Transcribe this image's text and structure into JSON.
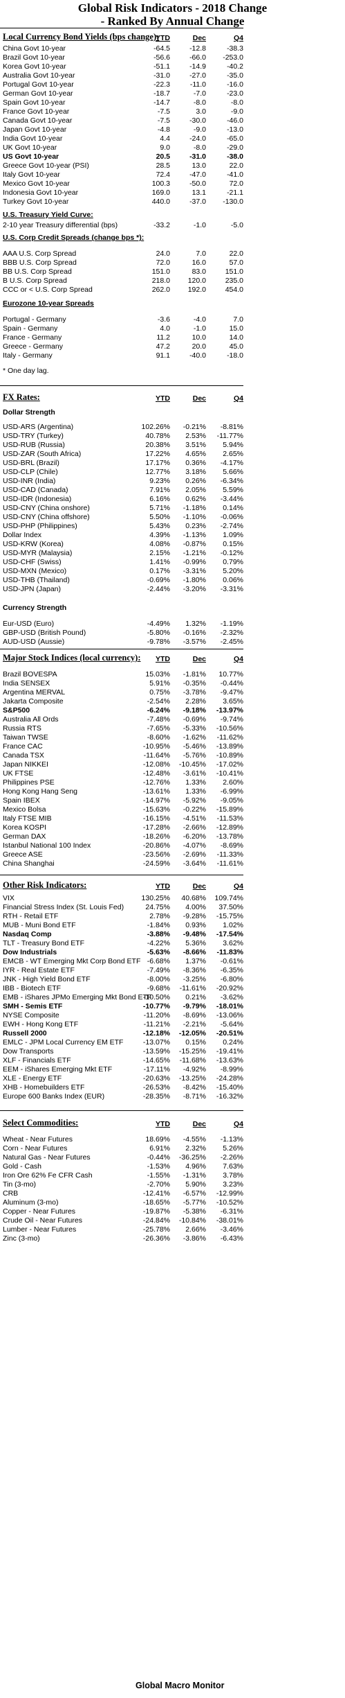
{
  "title_line1": "Global Risk Indicators - 2018 Change",
  "title_line2": "- Ranked By Annual Change",
  "columns": {
    "ytd": "YTD",
    "dec": "Dec",
    "q4": "Q4"
  },
  "bonds": {
    "title": "Local Currency Bond Yields (bps change):",
    "rows": [
      {
        "label": "China Govt 10-year",
        "ytd": "-64.5",
        "dec": "-12.8",
        "q4": "-38.3"
      },
      {
        "label": "Brazil Govt 10-year",
        "ytd": "-56.6",
        "dec": "-66.0",
        "q4": "-253.0"
      },
      {
        "label": "Korea Govt 10-year",
        "ytd": "-51.1",
        "dec": "-14.9",
        "q4": "-40.2"
      },
      {
        "label": "Australia Govt 10-year",
        "ytd": "-31.0",
        "dec": "-27.0",
        "q4": "-35.0"
      },
      {
        "label": "Portugal Govt 10-year",
        "ytd": "-22.3",
        "dec": "-11.0",
        "q4": "-16.0"
      },
      {
        "label": "German Govt 10-year",
        "ytd": "-18.7",
        "dec": "-7.0",
        "q4": "-23.0"
      },
      {
        "label": "Spain Govt 10-year",
        "ytd": "-14.7",
        "dec": "-8.0",
        "q4": "-8.0"
      },
      {
        "label": "France Govt 10-year",
        "ytd": "-7.5",
        "dec": "3.0",
        "q4": "-9.0"
      },
      {
        "label": "Canada Govt 10-year",
        "ytd": "-7.5",
        "dec": "-30.0",
        "q4": "-46.0"
      },
      {
        "label": "Japan Govt 10-year",
        "ytd": "-4.8",
        "dec": "-9.0",
        "q4": "-13.0"
      },
      {
        "label": "India Govt 10-year",
        "ytd": "4.4",
        "dec": "-24.0",
        "q4": "-65.0"
      },
      {
        "label": "UK Govt 10-year",
        "ytd": "9.0",
        "dec": "-8.0",
        "q4": "-29.0"
      },
      {
        "label": "US Govt 10-year",
        "ytd": "20.5",
        "dec": "-31.0",
        "q4": "-38.0",
        "bold": true
      },
      {
        "label": "Greece Govt 10-year (PSI)",
        "ytd": "28.5",
        "dec": "13.0",
        "q4": "22.0"
      },
      {
        "label": "Italy Govt 10-year",
        "ytd": "72.4",
        "dec": "-47.0",
        "q4": "-41.0"
      },
      {
        "label": "Mexico Govt 10-year",
        "ytd": "100.3",
        "dec": "-50.0",
        "q4": "72.0"
      },
      {
        "label": "Indonesia Govt 10-year",
        "ytd": "169.0",
        "dec": "13.1",
        "q4": "-21.1"
      },
      {
        "label": "Turkey Govt 10-year",
        "ytd": "440.0",
        "dec": "-37.0",
        "q4": "-130.0"
      }
    ]
  },
  "curve": {
    "title": "U.S. Treasury Yield Curve:",
    "rows": [
      {
        "label": "2-10 year Treasury differential (bps)",
        "ytd": "-33.2",
        "dec": "-1.0",
        "q4": "-5.0"
      }
    ]
  },
  "credit": {
    "title": "U.S. Corp Credit Spreads (change bps *):",
    "rows": [
      {
        "label": "AAA U.S. Corp Spread",
        "ytd": "24.0",
        "dec": "7.0",
        "q4": "22.0"
      },
      {
        "label": "BBB U.S. Corp Spread",
        "ytd": "72.0",
        "dec": "16.0",
        "q4": "57.0"
      },
      {
        "label": "BB U.S. Corp Spread",
        "ytd": "151.0",
        "dec": "83.0",
        "q4": "151.0"
      },
      {
        "label": "B U.S. Corp Spread",
        "ytd": "218.0",
        "dec": "120.0",
        "q4": "235.0"
      },
      {
        "label": "CCC or < U.S. Corp Spread",
        "ytd": "262.0",
        "dec": "192.0",
        "q4": "454.0"
      }
    ]
  },
  "eurozone": {
    "title": "Eurozone 10-year Spreads",
    "rows": [
      {
        "label": "Portugal - Germany",
        "ytd": "-3.6",
        "dec": "-4.0",
        "q4": "7.0"
      },
      {
        "label": "Spain - Germany",
        "ytd": "4.0",
        "dec": "-1.0",
        "q4": "15.0"
      },
      {
        "label": "France - Germany",
        "ytd": "11.2",
        "dec": "10.0",
        "q4": "14.0"
      },
      {
        "label": "Greece - Germany",
        "ytd": "47.2",
        "dec": "20.0",
        "q4": "45.0"
      },
      {
        "label": "Italy - Germany",
        "ytd": "91.1",
        "dec": "-40.0",
        "q4": "-18.0"
      }
    ],
    "note": "* One day lag."
  },
  "fx": {
    "title": "FX Rates:",
    "dollar_title": "Dollar Strength",
    "dollar_rows": [
      {
        "label": "USD-ARS (Argentina)",
        "ytd": "102.26%",
        "dec": "-0.21%",
        "q4": "-8.81%"
      },
      {
        "label": "USD-TRY (Turkey)",
        "ytd": "40.78%",
        "dec": "2.53%",
        "q4": "-11.77%"
      },
      {
        "label": "USD-RUB (Russia)",
        "ytd": "20.38%",
        "dec": "3.51%",
        "q4": "5.94%"
      },
      {
        "label": "USD-ZAR (South Africa)",
        "ytd": "17.22%",
        "dec": "4.65%",
        "q4": "2.65%"
      },
      {
        "label": "USD-BRL (Brazil)",
        "ytd": "17.17%",
        "dec": "0.36%",
        "q4": "-4.17%"
      },
      {
        "label": "USD-CLP (Chile)",
        "ytd": "12.77%",
        "dec": "3.18%",
        "q4": "5.66%"
      },
      {
        "label": "USD-INR (India)",
        "ytd": "9.23%",
        "dec": "0.26%",
        "q4": "-6.34%"
      },
      {
        "label": "USD-CAD (Canada)",
        "ytd": "7.91%",
        "dec": "2.05%",
        "q4": "5.59%"
      },
      {
        "label": "USD-IDR (Indonesia)",
        "ytd": "6.16%",
        "dec": "0.62%",
        "q4": "-3.44%"
      },
      {
        "label": "USD-CNY (China onshore)",
        "ytd": "5.71%",
        "dec": "-1.18%",
        "q4": "0.14%"
      },
      {
        "label": "USD-CNY (China offshore)",
        "ytd": "5.50%",
        "dec": "-1.10%",
        "q4": "-0.06%"
      },
      {
        "label": "USD-PHP (Philippines)",
        "ytd": "5.43%",
        "dec": "0.23%",
        "q4": "-2.74%"
      },
      {
        "label": "Dollar Index",
        "ytd": "4.39%",
        "dec": "-1.13%",
        "q4": "1.09%"
      },
      {
        "label": "USD-KRW (Korea)",
        "ytd": "4.08%",
        "dec": "-0.87%",
        "q4": "0.15%"
      },
      {
        "label": "USD-MYR (Malaysia)",
        "ytd": "2.15%",
        "dec": "-1.21%",
        "q4": "-0.12%"
      },
      {
        "label": "USD-CHF (Swiss)",
        "ytd": "1.41%",
        "dec": "-0.99%",
        "q4": "0.79%"
      },
      {
        "label": "USD-MXN (Mexico)",
        "ytd": "0.17%",
        "dec": "-3.31%",
        "q4": "5.20%"
      },
      {
        "label": "USD-THB (Thailand)",
        "ytd": "-0.69%",
        "dec": "-1.80%",
        "q4": "0.06%"
      },
      {
        "label": "USD-JPN (Japan)",
        "ytd": "-2.44%",
        "dec": "-3.20%",
        "q4": "-3.31%"
      }
    ],
    "currency_title": "Currency Strength",
    "currency_rows": [
      {
        "label": "Eur-USD (Euro)",
        "ytd": "-4.49%",
        "dec": "1.32%",
        "q4": "-1.19%"
      },
      {
        "label": "GBP-USD (British Pound)",
        "ytd": "-5.80%",
        "dec": "-0.16%",
        "q4": "-2.32%"
      },
      {
        "label": "AUD-USD (Aussie)",
        "ytd": "-9.78%",
        "dec": "-3.57%",
        "q4": "-2.45%"
      }
    ]
  },
  "stocks": {
    "title": "Major Stock Indices (local currency):",
    "rows": [
      {
        "label": "Brazil BOVESPA",
        "ytd": "15.03%",
        "dec": "-1.81%",
        "q4": "10.77%"
      },
      {
        "label": "India SENSEX",
        "ytd": "5.91%",
        "dec": "-0.35%",
        "q4": "-0.44%"
      },
      {
        "label": "Argentina MERVAL",
        "ytd": "0.75%",
        "dec": "-3.78%",
        "q4": "-9.47%"
      },
      {
        "label": "Jakarta Composite",
        "ytd": "-2.54%",
        "dec": "2.28%",
        "q4": "3.65%"
      },
      {
        "label": "S&P500",
        "ytd": "-6.24%",
        "dec": "-9.18%",
        "q4": "-13.97%",
        "bold": true
      },
      {
        "label": "Australia All Ords",
        "ytd": "-7.48%",
        "dec": "-0.69%",
        "q4": "-9.74%"
      },
      {
        "label": "Russia RTS",
        "ytd": "-7.65%",
        "dec": "-5.33%",
        "q4": "-10.56%"
      },
      {
        "label": "Taiwan  TWSE",
        "ytd": "-8.60%",
        "dec": "-1.62%",
        "q4": "-11.62%"
      },
      {
        "label": "France CAC",
        "ytd": "-10.95%",
        "dec": "-5.46%",
        "q4": "-13.89%"
      },
      {
        "label": "Canada TSX",
        "ytd": "-11.64%",
        "dec": "-5.76%",
        "q4": "-10.89%"
      },
      {
        "label": "Japan NIKKEI",
        "ytd": "-12.08%",
        "dec": "-10.45%",
        "q4": "-17.02%"
      },
      {
        "label": "UK FTSE",
        "ytd": "-12.48%",
        "dec": "-3.61%",
        "q4": "-10.41%"
      },
      {
        "label": "Philippines PSE",
        "ytd": "-12.76%",
        "dec": "1.33%",
        "q4": "2.60%"
      },
      {
        "label": "Hong Kong Hang Seng",
        "ytd": "-13.61%",
        "dec": "1.33%",
        "q4": "-6.99%"
      },
      {
        "label": "Spain IBEX",
        "ytd": "-14.97%",
        "dec": "-5.92%",
        "q4": "-9.05%"
      },
      {
        "label": "Mexico Bolsa",
        "ytd": "-15.63%",
        "dec": "-0.22%",
        "q4": "-15.89%"
      },
      {
        "label": "Italy FTSE MIB",
        "ytd": "-16.15%",
        "dec": "-4.51%",
        "q4": "-11.53%"
      },
      {
        "label": "Korea KOSPI",
        "ytd": "-17.28%",
        "dec": "-2.66%",
        "q4": "-12.89%"
      },
      {
        "label": "German DAX",
        "ytd": "-18.26%",
        "dec": "-6.20%",
        "q4": "-13.78%"
      },
      {
        "label": "Istanbul National 100 Index",
        "ytd": "-20.86%",
        "dec": "-4.07%",
        "q4": "-8.69%"
      },
      {
        "label": "Greece ASE",
        "ytd": "-23.56%",
        "dec": "-2.69%",
        "q4": "-11.33%"
      },
      {
        "label": "China Shanghai",
        "ytd": "-24.59%",
        "dec": "-3.64%",
        "q4": "-11.61%"
      }
    ]
  },
  "risk": {
    "title": "Other Risk Indicators:",
    "rows": [
      {
        "label": "VIX",
        "ytd": "130.25%",
        "dec": "40.68%",
        "q4": "109.74%"
      },
      {
        "label": "Financial Stress Index (St. Louis Fed)",
        "ytd": "24.75%",
        "dec": "4.00%",
        "q4": "37.50%"
      },
      {
        "label": "RTH - Retail ETF",
        "ytd": "2.78%",
        "dec": "-9.28%",
        "q4": "-15.75%"
      },
      {
        "label": "MUB - Muni Bond ETF",
        "ytd": "-1.84%",
        "dec": "0.93%",
        "q4": "1.02%"
      },
      {
        "label": "Nasdaq Comp",
        "ytd": "-3.88%",
        "dec": "-9.48%",
        "q4": "-17.54%",
        "bold": true
      },
      {
        "label": "TLT - Treasury Bond ETF",
        "ytd": "-4.22%",
        "dec": "5.36%",
        "q4": "3.62%"
      },
      {
        "label": "Dow Industrials",
        "ytd": "-5.63%",
        "dec": "-8.66%",
        "q4": "-11.83%",
        "bold": true
      },
      {
        "label": "EMCB - WT Emerging Mkt Corp Bond ETF",
        "ytd": "-6.68%",
        "dec": "1.37%",
        "q4": "-0.61%"
      },
      {
        "label": "IYR - Real Estate ETF",
        "ytd": "-7.49%",
        "dec": "-8.36%",
        "q4": "-6.35%"
      },
      {
        "label": "JNK - High Yield Bond ETF",
        "ytd": "-8.00%",
        "dec": "-3.25%",
        "q4": "-6.80%"
      },
      {
        "label": "IBB - Biotech ETF",
        "ytd": "-9.68%",
        "dec": "-11.61%",
        "q4": "-20.92%"
      },
      {
        "label": "EMB - iShares JPMo Emerging Mkt Bond ETF",
        "ytd": "-10.50%",
        "dec": "0.21%",
        "q4": "-3.62%"
      },
      {
        "label": "SMH - Semis ETF",
        "ytd": "-10.77%",
        "dec": "-9.79%",
        "q4": "-18.01%",
        "bold": true
      },
      {
        "label": "NYSE Composite",
        "ytd": "-11.20%",
        "dec": "-8.69%",
        "q4": "-13.06%"
      },
      {
        "label": "EWH - Hong Kong ETF",
        "ytd": "-11.21%",
        "dec": "-2.21%",
        "q4": "-5.64%"
      },
      {
        "label": "Russell 2000",
        "ytd": "-12.18%",
        "dec": "-12.05%",
        "q4": "-20.51%",
        "bold": true
      },
      {
        "label": "EMLC - JPM Local Currency EM ETF",
        "ytd": "-13.07%",
        "dec": "0.15%",
        "q4": "0.24%"
      },
      {
        "label": "Dow Transports",
        "ytd": "-13.59%",
        "dec": "-15.25%",
        "q4": "-19.41%"
      },
      {
        "label": "XLF - Financials ETF",
        "ytd": "-14.65%",
        "dec": "-11.68%",
        "q4": "-13.63%"
      },
      {
        "label": "EEM - iShares Emerging Mkt ETF",
        "ytd": "-17.11%",
        "dec": "-4.92%",
        "q4": "-8.99%"
      },
      {
        "label": "XLE - Energy ETF",
        "ytd": "-20.63%",
        "dec": "-13.25%",
        "q4": "-24.28%"
      },
      {
        "label": "XHB - Homebuilders ETF",
        "ytd": "-26.53%",
        "dec": "-8.42%",
        "q4": "-15.40%"
      },
      {
        "label": "Europe 600 Banks Index (EUR)",
        "ytd": "-28.35%",
        "dec": "-8.71%",
        "q4": "-16.32%"
      }
    ]
  },
  "commod": {
    "title": "Select Commodities:",
    "rows": [
      {
        "label": "Wheat - Near Futures",
        "ytd": "18.69%",
        "dec": "-4.55%",
        "q4": "-1.13%"
      },
      {
        "label": "Corn - Near Futures",
        "ytd": "6.91%",
        "dec": "2.32%",
        "q4": "5.26%"
      },
      {
        "label": "Natural Gas - Near Futures",
        "ytd": "-0.44%",
        "dec": "-36.25%",
        "q4": "-2.26%"
      },
      {
        "label": "Gold - Cash",
        "ytd": "-1.53%",
        "dec": "4.96%",
        "q4": "7.63%"
      },
      {
        "label": "Iron Ore 62% Fe CFR Cash",
        "ytd": "-1.55%",
        "dec": "-1.31%",
        "q4": "3.78%"
      },
      {
        "label": "Tin (3-mo)",
        "ytd": "-2.70%",
        "dec": "5.90%",
        "q4": "3.23%"
      },
      {
        "label": "CRB",
        "ytd": "-12.41%",
        "dec": "-6.57%",
        "q4": "-12.99%"
      },
      {
        "label": "Aluminum (3-mo)",
        "ytd": "-18.65%",
        "dec": "-5.77%",
        "q4": "-10.52%"
      },
      {
        "label": "Copper - Near Futures",
        "ytd": "-19.87%",
        "dec": "-5.38%",
        "q4": "-6.31%"
      },
      {
        "label": "Crude Oil - Near Futures",
        "ytd": "-24.84%",
        "dec": "-10.84%",
        "q4": "-38.01%"
      },
      {
        "label": "Lumber - Near Futures",
        "ytd": "-25.78%",
        "dec": "2.66%",
        "q4": "-3.46%"
      },
      {
        "label": "Zinc (3-mo)",
        "ytd": "-26.36%",
        "dec": "-3.86%",
        "q4": "-6.43%"
      }
    ]
  },
  "footer": "Global Macro Monitor"
}
